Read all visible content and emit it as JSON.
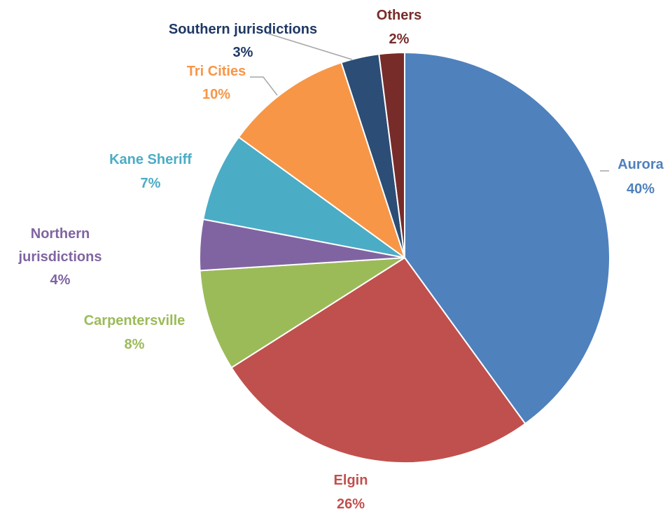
{
  "chart_data": {
    "type": "pie",
    "title": "",
    "start_angle_deg": 0,
    "direction": "clockwise",
    "slices": [
      {
        "label": "Aurora",
        "value": 40,
        "value_label": "40%",
        "color": "#4F81BD"
      },
      {
        "label": "Elgin",
        "value": 26,
        "value_label": "26%",
        "color": "#C0504D"
      },
      {
        "label": "Carpentersville",
        "value": 8,
        "value_label": "8%",
        "color": "#9BBB59"
      },
      {
        "label": "Northern jurisdictions",
        "value": 4,
        "value_label": "4%",
        "color": "#8064A2"
      },
      {
        "label": "Kane Sheriff",
        "value": 7,
        "value_label": "7%",
        "color": "#4BACC6"
      },
      {
        "label": "Tri Cities",
        "value": 10,
        "value_label": "10%",
        "color": "#F79646"
      },
      {
        "label": "Southern jurisdictions",
        "value": 3,
        "value_label": "3%",
        "color": "#2C4D75"
      },
      {
        "label": "Others",
        "value": 2,
        "value_label": "2%",
        "color": "#772C2A"
      }
    ],
    "legend": "none",
    "data_labels": "outside with leader lines"
  },
  "label_colors": {
    "Aurora": "#4F81BD",
    "Elgin": "#C0504D",
    "Carpentersville": "#9BBB59",
    "Northern jurisdictions": "#8064A2",
    "Kane Sheriff": "#4BACC6",
    "Tri Cities": "#F79646",
    "Southern jurisdictions": "#1F3864",
    "Others": "#772C2A"
  },
  "leader_line_color": "#A6A6A6"
}
